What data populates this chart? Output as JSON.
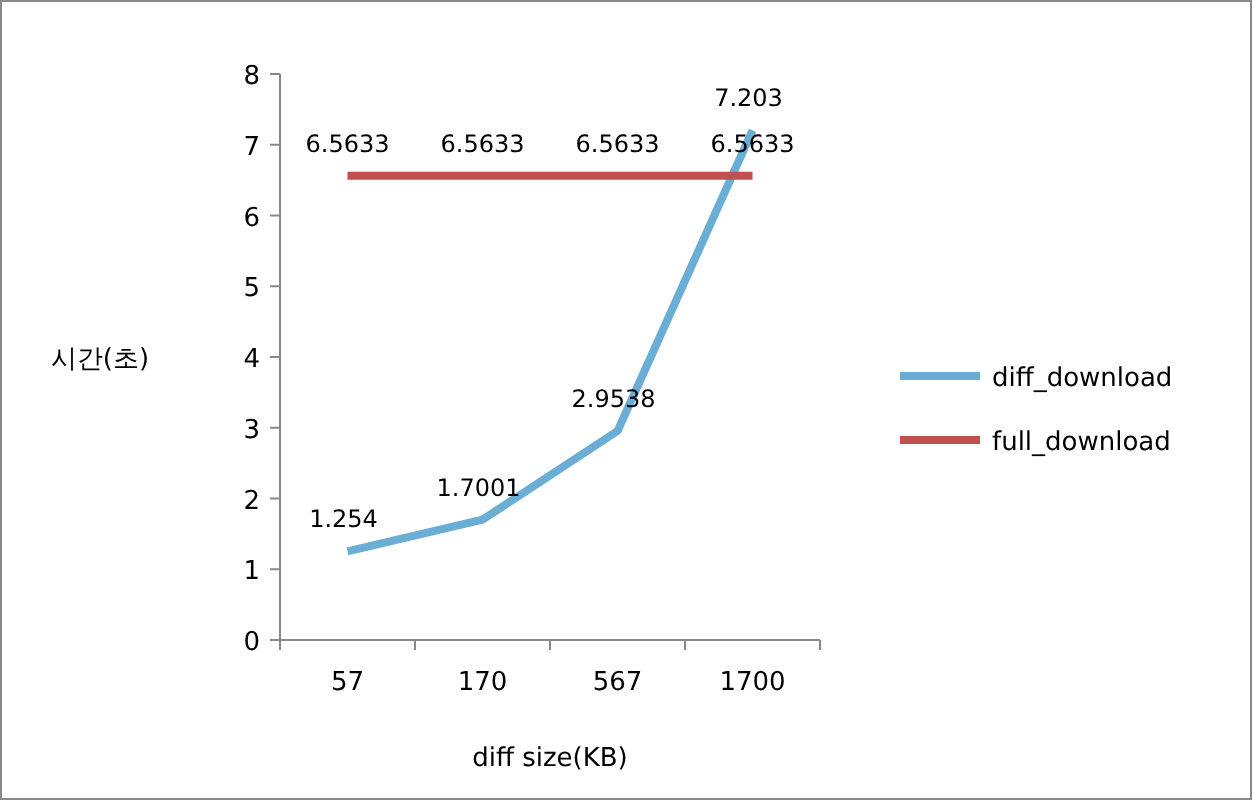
{
  "chart_data": {
    "type": "line",
    "xlabel": "diff size(KB)",
    "ylabel": "시간(초)",
    "categories": [
      "57",
      "170",
      "567",
      "1700"
    ],
    "series": [
      {
        "name": "diff_download",
        "color": "#6aaed6",
        "values": [
          1.254,
          1.7001,
          2.9538,
          7.203
        ]
      },
      {
        "name": "full_download",
        "color": "#c0504d",
        "values": [
          6.5633,
          6.5633,
          6.5633,
          6.5633
        ]
      }
    ],
    "ylim": [
      0,
      8
    ],
    "yticks": [
      0,
      1,
      2,
      3,
      4,
      5,
      6,
      7,
      8
    ],
    "data_labels": true,
    "legend": "right"
  }
}
